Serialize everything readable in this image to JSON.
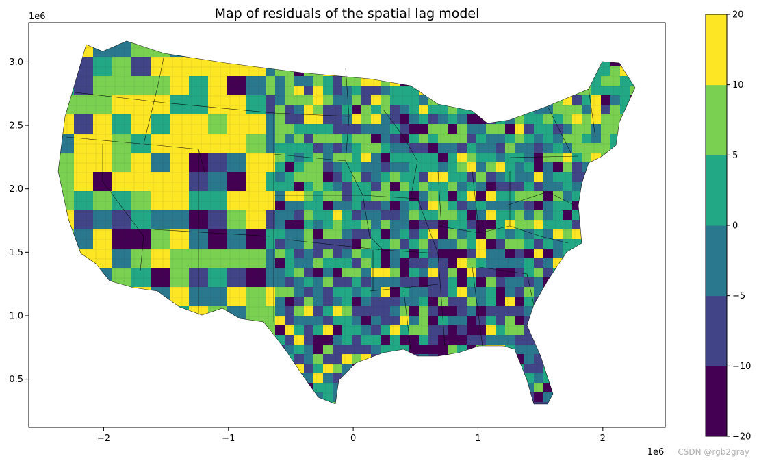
{
  "title": "Map of residuals of the spatial lag model",
  "axes": {
    "x_ticks": [
      "−2",
      "−1",
      "0",
      "1",
      "2"
    ],
    "y_ticks": [
      "0.5",
      "1.0",
      "1.5",
      "2.0",
      "2.5",
      "3.0"
    ],
    "x_offset": "1e6",
    "y_offset": "1e6",
    "xlim": [
      -2.6,
      2.5
    ],
    "ylim": [
      0.12,
      3.31
    ]
  },
  "colorbar": {
    "ticks": [
      "−20",
      "−10",
      "−5",
      "0",
      "5",
      "10",
      "20"
    ],
    "bins": [
      {
        "from": -20,
        "to": -10,
        "color": "#440154"
      },
      {
        "from": -10,
        "to": -5,
        "color": "#414487"
      },
      {
        "from": -5,
        "to": 0,
        "color": "#2a788e"
      },
      {
        "from": 0,
        "to": 5,
        "color": "#22a884"
      },
      {
        "from": 5,
        "to": 10,
        "color": "#7ad151"
      },
      {
        "from": 10,
        "to": 20,
        "color": "#fde725"
      }
    ]
  },
  "watermark": "CSDN @rgb2gray"
}
